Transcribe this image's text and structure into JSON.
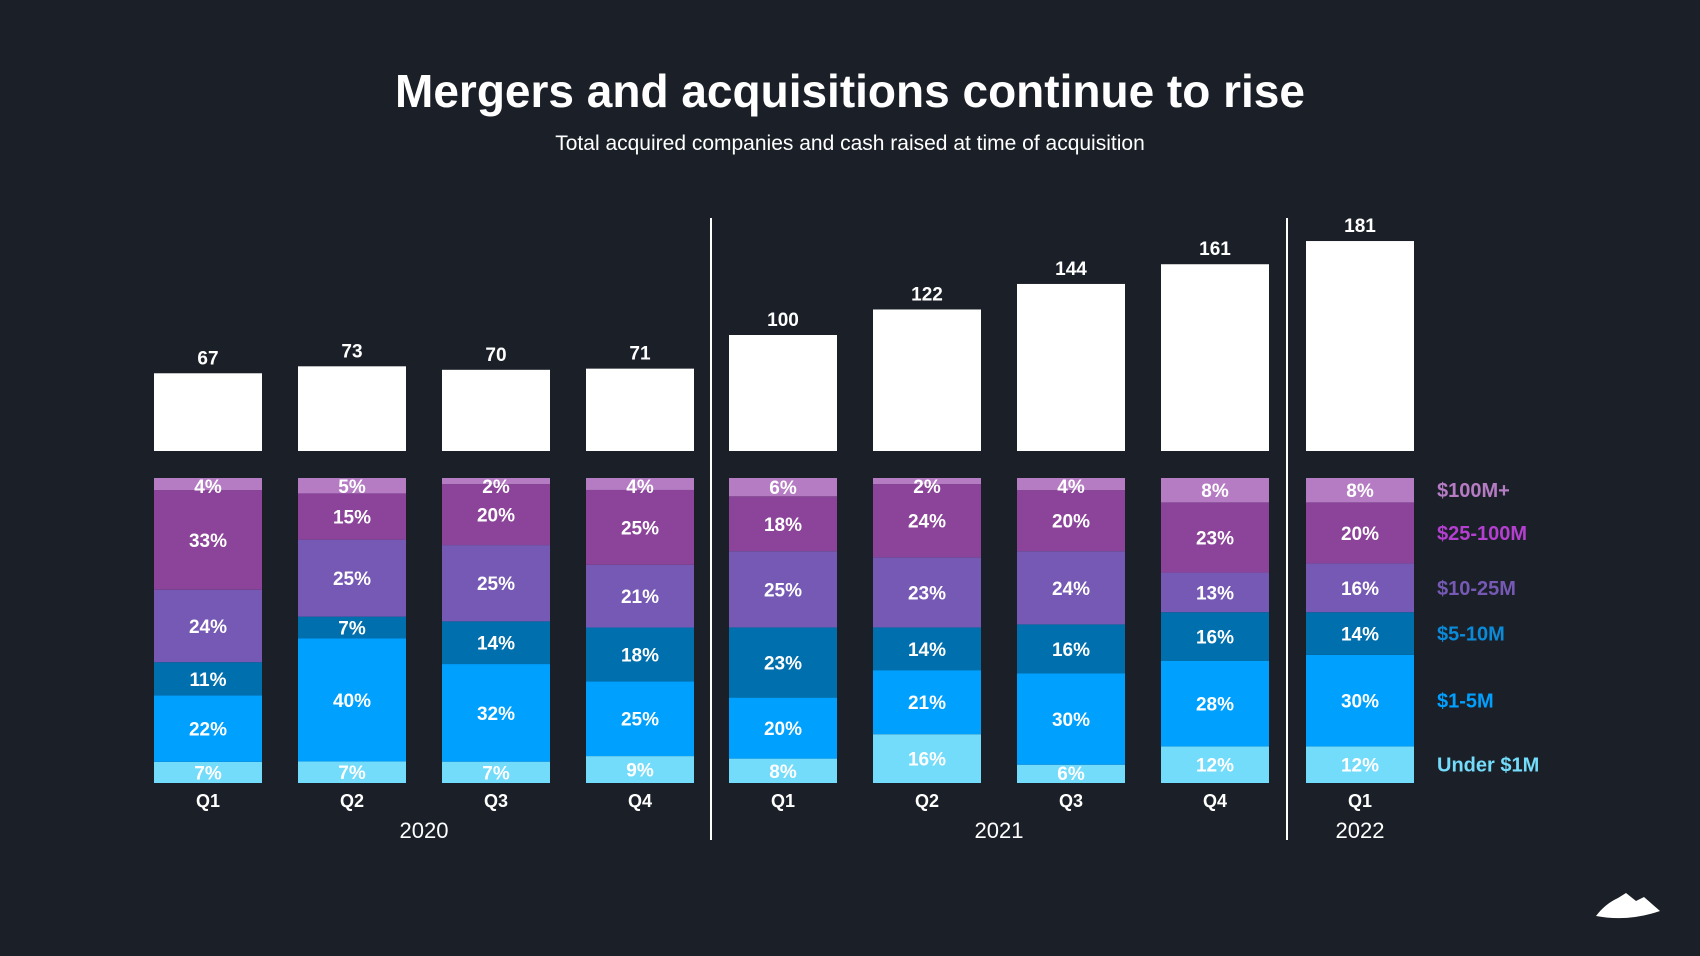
{
  "chart_data": {
    "type": "bar",
    "title": "Mergers and acquisitions continue to rise",
    "subtitle": "Total acquired companies and cash raised at time of acquisition",
    "groups": [
      {
        "year": "2020",
        "quarters": [
          "Q1",
          "Q2",
          "Q3",
          "Q4"
        ]
      },
      {
        "year": "2021",
        "quarters": [
          "Q1",
          "Q2",
          "Q3",
          "Q4"
        ]
      },
      {
        "year": "2022",
        "quarters": [
          "Q1"
        ]
      }
    ],
    "categories": [
      "2020 Q1",
      "2020 Q2",
      "2020 Q3",
      "2020 Q4",
      "2021 Q1",
      "2021 Q2",
      "2021 Q3",
      "2021 Q4",
      "2022 Q1"
    ],
    "totals": [
      67,
      73,
      70,
      71,
      100,
      122,
      144,
      161,
      181
    ],
    "series": [
      {
        "name": "Under $1M",
        "color": "#74dcfb",
        "legend_color": "#74dcfb",
        "values": [
          7,
          7,
          7,
          9,
          8,
          16,
          6,
          12,
          12
        ]
      },
      {
        "name": "$1-5M",
        "color": "#00a0ff",
        "legend_color": "#00a0ff",
        "values": [
          22,
          40,
          32,
          25,
          20,
          21,
          30,
          28,
          30
        ]
      },
      {
        "name": "$5-10M",
        "color": "#006fad",
        "legend_color": "#0a8ad8",
        "values": [
          11,
          7,
          14,
          18,
          23,
          14,
          16,
          16,
          14
        ]
      },
      {
        "name": "$10-25M",
        "color": "#7559b4",
        "legend_color": "#7559b4",
        "values": [
          24,
          25,
          25,
          21,
          25,
          23,
          24,
          13,
          16
        ]
      },
      {
        "name": "$25-100M",
        "color": "#8b4499",
        "legend_color": "#b43fd0",
        "values": [
          33,
          15,
          20,
          25,
          18,
          24,
          20,
          23,
          20
        ]
      },
      {
        "name": "$100M+",
        "color": "#b57cc4",
        "legend_color": "#b57cc4",
        "values": [
          4,
          5,
          2,
          4,
          6,
          2,
          4,
          8,
          8
        ]
      }
    ],
    "value_suffix": "%",
    "legend_placement": "right",
    "grid": false
  },
  "colors": {
    "background": "#1b2028",
    "total_bar": "#ffffff",
    "text": "#ffffff"
  },
  "logo": {
    "icon": "mountain-logo-icon"
  }
}
